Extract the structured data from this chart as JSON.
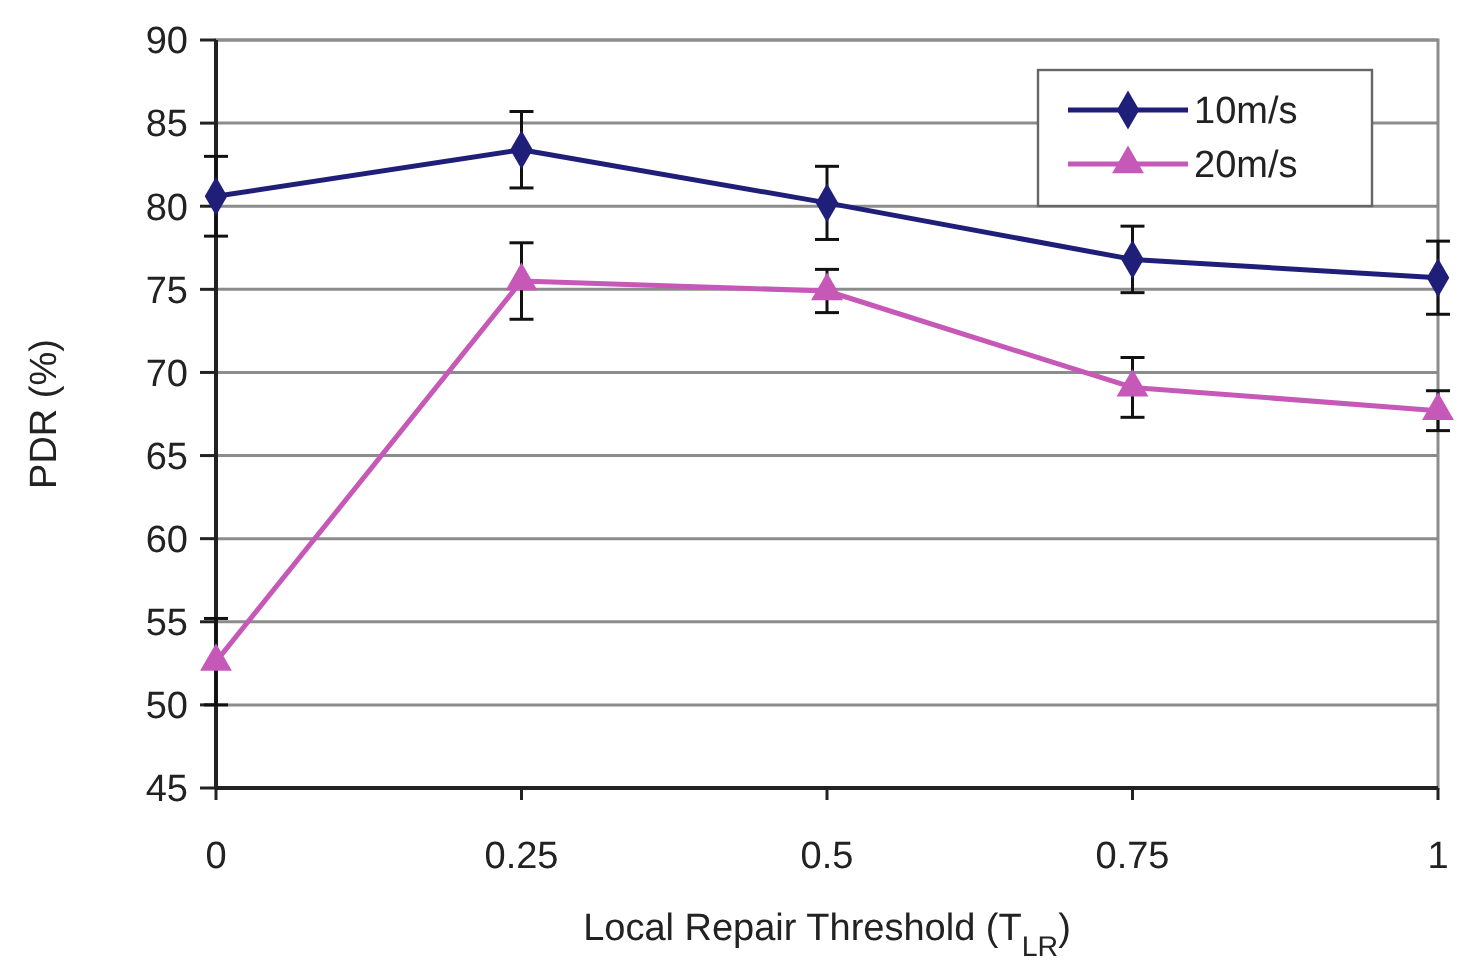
{
  "chart_data": {
    "type": "line",
    "xlabel": "Local Repair Threshold (T$_{LR}$)",
    "ylabel": "PDR (%)",
    "x": [
      0,
      0.25,
      0.5,
      0.75,
      1
    ],
    "xlim": [
      0,
      1
    ],
    "xticks": [
      0,
      0.25,
      0.5,
      0.75,
      1
    ],
    "ylim": [
      45,
      90
    ],
    "yticks": [
      45,
      50,
      55,
      60,
      65,
      70,
      75,
      80,
      85,
      90
    ],
    "grid": "y",
    "legend": "top right",
    "line_style": "solid",
    "series": [
      {
        "name": "10m/s",
        "color": "#1f1f7a",
        "marker": "diamond",
        "values": [
          80.6,
          83.4,
          80.2,
          76.8,
          75.7
        ],
        "errors": [
          2.4,
          2.3,
          2.2,
          2.0,
          2.2
        ]
      },
      {
        "name": "20m/s",
        "color": "#c659b8",
        "marker": "triangle",
        "values": [
          52.6,
          75.5,
          74.9,
          69.1,
          67.7
        ],
        "errors": [
          2.6,
          2.3,
          1.3,
          1.8,
          1.2
        ]
      }
    ]
  }
}
